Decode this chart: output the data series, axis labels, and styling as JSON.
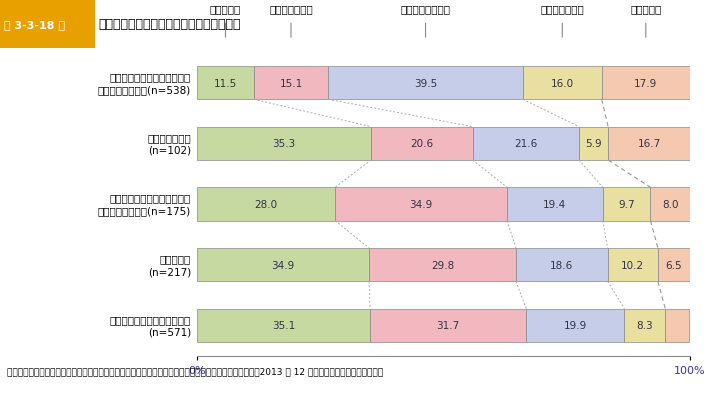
{
  "title": "第 3-3-18 図　　事業承継後の取組と事業承継後の業績変化",
  "categories": [
    "先代と異なる取り組みは行っ\nていない　　　　　　(n=538)",
    "異業種への参入\n(n=102)",
    "赤字部門からの撤退など業態\n見直し　　　　　　(n=175)",
    "新商品開発\n(n=217)",
    "新たな販路開拓・取引先拡大\n(n=571)"
  ],
  "data": [
    [
      11.5,
      15.1,
      39.5,
      16.0,
      17.9
    ],
    [
      35.3,
      20.6,
      21.6,
      5.9,
      16.7
    ],
    [
      28.0,
      34.9,
      19.4,
      9.7,
      8.0
    ],
    [
      34.9,
      29.8,
      18.6,
      10.2,
      6.5
    ],
    [
      35.1,
      31.7,
      19.9,
      8.3,
      4.9
    ]
  ],
  "colors": [
    "#c6d9a0",
    "#f2b8c0",
    "#c5cde8",
    "#e8dfa0",
    "#f5c8b0"
  ],
  "legend_labels": [
    "良くなった",
    "やや良くなった",
    "あまり変わらない",
    "やや悪くなった",
    "悪くなった"
  ],
  "footer": "資料：中小企業庁委託「中小企業者・小規模企業者の経営実態及び事業承継に関するアンケート調査」（2013 年 12 月、（株）帝国データバンク）",
  "header_color": "#e8a000",
  "bg_color": "#ffffff",
  "text_color": "#555566"
}
